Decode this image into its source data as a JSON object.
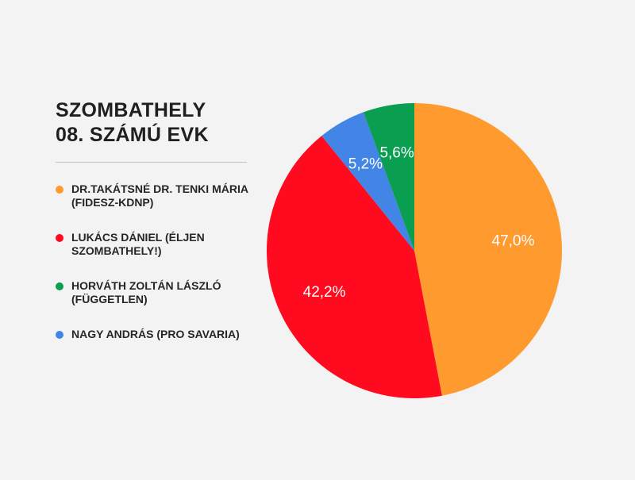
{
  "title_lines": [
    "SZOMBATHELY",
    "08. SZÁMÚ EVK"
  ],
  "chart_data": {
    "type": "pie",
    "title": "SZOMBATHELY 08. SZÁMÚ EVK",
    "legend_position": "left",
    "slices": [
      {
        "name": "DR.TAKÁTSNÉ DR. TENKI MÁRIA (FIDESZ-KDNP)",
        "value": 47.0,
        "label": "47,0%",
        "color": "#ff9a2e"
      },
      {
        "name": "LUKÁCS DÁNIEL (ÉLJEN SZOMBATHELY!)",
        "value": 42.2,
        "label": "42,2%",
        "color": "#ff0a1f"
      },
      {
        "name": "NAGY ANDRÁS (PRO SAVARIA)",
        "value": 5.2,
        "label": "5,2%",
        "color": "#4285e6"
      },
      {
        "name": "HORVÁTH ZOLTÁN LÁSZLÓ (FÜGGETLEN)",
        "value": 5.6,
        "label": "5,6%",
        "color": "#0a9e50"
      }
    ]
  },
  "legend": [
    {
      "label": "DR.TAKÁTSNÉ DR. TENKI MÁRIA (FIDESZ-KDNP)",
      "color": "#ff9a2e"
    },
    {
      "label": "LUKÁCS DÁNIEL (ÉLJEN SZOMBATHELY!)",
      "color": "#ff0a1f"
    },
    {
      "label": "HORVÁTH ZOLTÁN LÁSZLÓ (FÜGGETLEN)",
      "color": "#0a9e50"
    },
    {
      "label": "NAGY ANDRÁS (PRO SAVARIA)",
      "color": "#4285e6"
    }
  ]
}
